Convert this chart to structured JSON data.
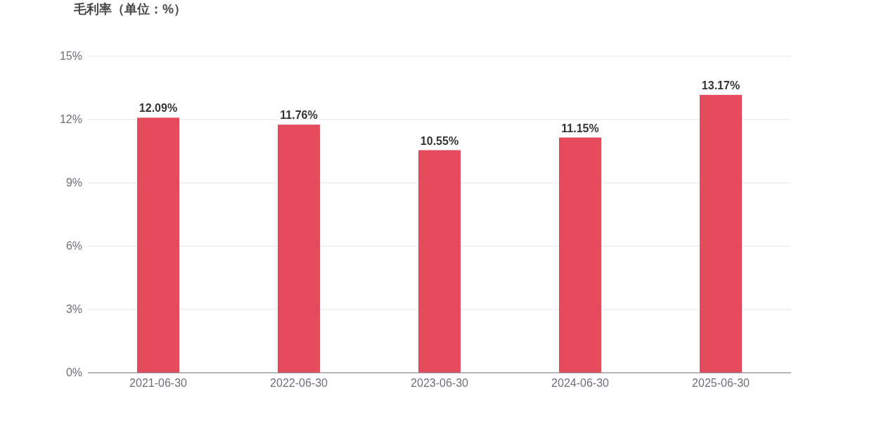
{
  "chart_data": {
    "type": "bar",
    "title": "毛利率（单位：%）",
    "categories": [
      "2021-06-30",
      "2022-06-30",
      "2023-06-30",
      "2024-06-30",
      "2025-06-30"
    ],
    "series": [
      {
        "color": "#e54b5d",
        "values": [
          12.09,
          11.76,
          10.55,
          11.15,
          13.17
        ],
        "value_labels": [
          "12.09%",
          "11.76%",
          "10.55%",
          "11.15%",
          "13.17%"
        ]
      }
    ],
    "ylim": [
      0,
      15
    ],
    "yticks": [
      {
        "value": 0,
        "label": "0%"
      },
      {
        "value": 3,
        "label": "3%"
      },
      {
        "value": 6,
        "label": "6%"
      },
      {
        "value": 9,
        "label": "9%"
      },
      {
        "value": 12,
        "label": "12%"
      },
      {
        "value": 15,
        "label": "15%"
      }
    ],
    "grid": "y"
  }
}
